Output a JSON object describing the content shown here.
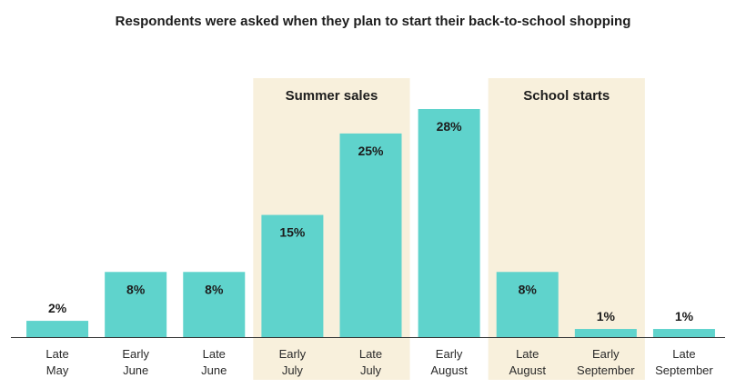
{
  "chart_data": {
    "type": "bar",
    "title": "Respondents were asked when they plan to start their back-to-school shopping",
    "categories": [
      [
        "Late",
        "May"
      ],
      [
        "Early",
        "June"
      ],
      [
        "Late",
        "June"
      ],
      [
        "Early",
        "July"
      ],
      [
        "Late",
        "July"
      ],
      [
        "Early",
        "August"
      ],
      [
        "Late",
        "August"
      ],
      [
        "Early",
        "September"
      ],
      [
        "Late",
        "September"
      ]
    ],
    "values": [
      2,
      8,
      8,
      15,
      25,
      28,
      8,
      1,
      1
    ],
    "value_labels": [
      "2%",
      "8%",
      "8%",
      "15%",
      "25%",
      "28%",
      "8%",
      "1%",
      "1%"
    ],
    "unit": "%",
    "ylim": [
      0,
      30
    ],
    "grid": false,
    "highlight_bands": [
      {
        "label": "Summer sales",
        "from_index": 3,
        "to_index": 4
      },
      {
        "label": "School starts",
        "from_index": 6,
        "to_index": 7
      }
    ],
    "colors": {
      "bar": "#5fd3cc",
      "band": "#f8f0dc",
      "axis": "#333333"
    }
  }
}
